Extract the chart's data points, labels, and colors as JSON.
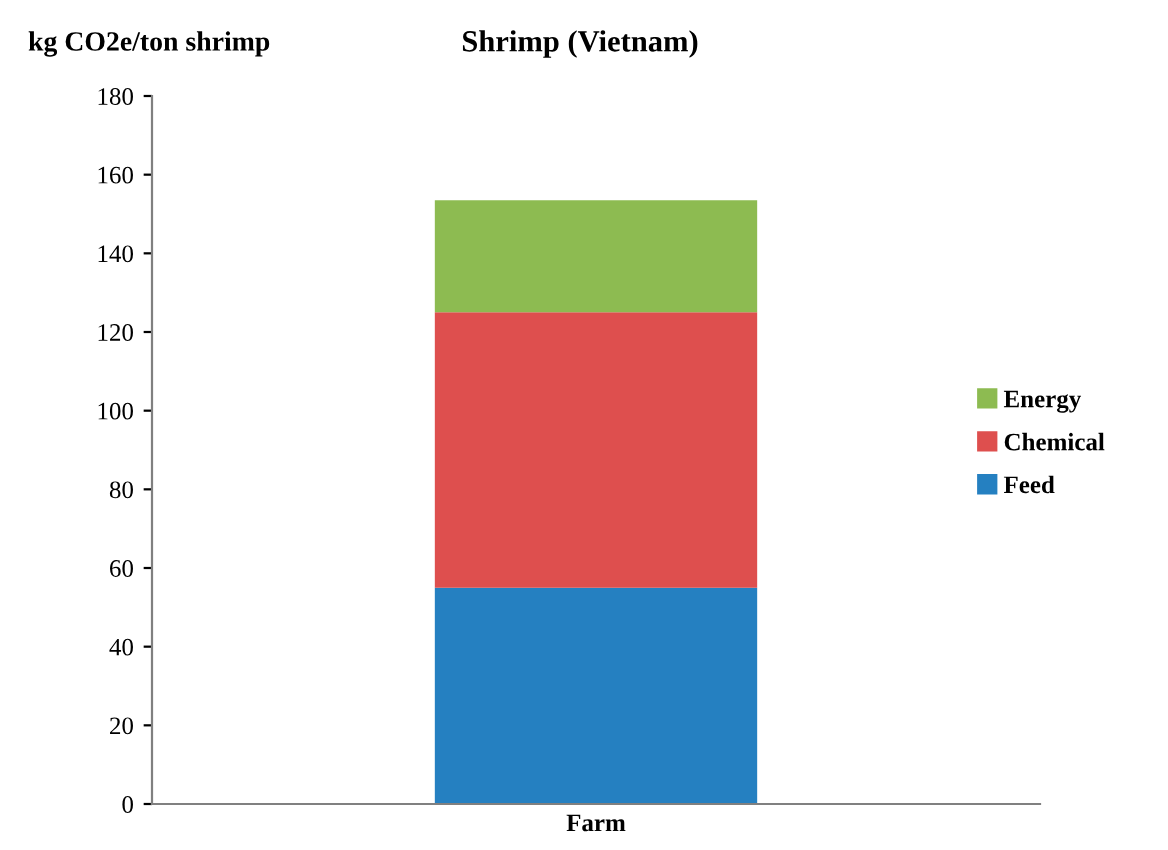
{
  "chart_data": {
    "type": "bar",
    "title": "Shrimp (Vietnam)",
    "ylabel": "kg CO2e/ton shrimp",
    "categories": [
      "Farm"
    ],
    "stacked": true,
    "series": [
      {
        "name": "Feed",
        "color": "#2580c1",
        "values": [
          55
        ]
      },
      {
        "name": "Chemical",
        "color": "#de4f4e",
        "values": [
          70
        ]
      },
      {
        "name": "Energy",
        "color": "#8dbb51",
        "values": [
          28.5
        ]
      }
    ],
    "ylim": [
      0,
      180
    ],
    "yticks": [
      0,
      20,
      40,
      60,
      80,
      100,
      120,
      140,
      160,
      180
    ],
    "grid": false,
    "legend": "right"
  }
}
